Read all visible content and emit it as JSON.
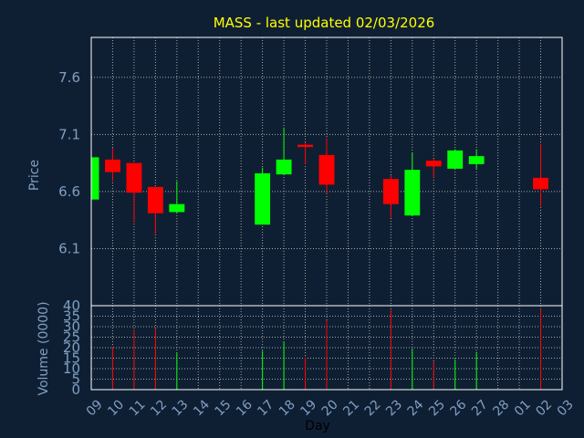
{
  "chart_data": {
    "type": "candlestick",
    "title": "MASS - last updated 02/03/2026",
    "xlabel": "Day",
    "price_ylabel": "Price",
    "volume_ylabel": "Volume (0000)",
    "x_ticks": [
      "09",
      "10",
      "11",
      "12",
      "13",
      "14",
      "15",
      "16",
      "17",
      "18",
      "19",
      "20",
      "21",
      "22",
      "23",
      "24",
      "25",
      "26",
      "27",
      "28",
      "01",
      "02",
      "03"
    ],
    "price_ticks": [
      "7.6",
      "7.1",
      "6.6",
      "6.1"
    ],
    "price_tick_values": [
      7.6,
      7.1,
      6.6,
      6.1
    ],
    "price_ylim": [
      5.6,
      7.95
    ],
    "volume_ticks": [
      "40",
      "35",
      "30",
      "25",
      "20",
      "15",
      "10",
      "5",
      "0"
    ],
    "volume_tick_values": [
      40,
      35,
      30,
      25,
      20,
      15,
      10,
      5,
      0
    ],
    "volume_ylim": [
      0,
      40
    ],
    "grid": true,
    "candles": [
      {
        "x": 0,
        "open": 6.53,
        "high": 6.9,
        "low": 6.53,
        "close": 6.9
      },
      {
        "x": 1,
        "open": 6.88,
        "high": 6.98,
        "low": 6.69,
        "close": 6.77
      },
      {
        "x": 2,
        "open": 6.85,
        "high": 6.85,
        "low": 6.33,
        "close": 6.59
      },
      {
        "x": 3,
        "open": 6.64,
        "high": 6.64,
        "low": 6.23,
        "close": 6.41
      },
      {
        "x": 4,
        "open": 6.42,
        "high": 6.69,
        "low": 6.41,
        "close": 6.49
      },
      {
        "x": 8,
        "open": 6.31,
        "high": 6.81,
        "low": 6.31,
        "close": 6.76
      },
      {
        "x": 9,
        "open": 6.75,
        "high": 7.16,
        "low": 6.75,
        "close": 6.88
      },
      {
        "x": 10,
        "open": 7.01,
        "high": 7.03,
        "low": 6.84,
        "close": 6.99
      },
      {
        "x": 11,
        "open": 6.92,
        "high": 7.07,
        "low": 6.58,
        "close": 6.66
      },
      {
        "x": 14,
        "open": 6.71,
        "high": 6.74,
        "low": 6.37,
        "close": 6.49
      },
      {
        "x": 15,
        "open": 6.39,
        "high": 6.94,
        "low": 6.39,
        "close": 6.79
      },
      {
        "x": 16,
        "open": 6.87,
        "high": 6.89,
        "low": 6.72,
        "close": 6.82
      },
      {
        "x": 17,
        "open": 6.8,
        "high": 6.97,
        "low": 6.8,
        "close": 6.96
      },
      {
        "x": 18,
        "open": 6.84,
        "high": 6.97,
        "low": 6.8,
        "close": 6.91
      },
      {
        "x": 21,
        "open": 6.72,
        "high": 7.02,
        "low": 6.47,
        "close": 6.62
      }
    ],
    "volumes": [
      {
        "x": 1,
        "value": 20.5
      },
      {
        "x": 2,
        "value": 28.5
      },
      {
        "x": 3,
        "value": 29.0
      },
      {
        "x": 4,
        "value": 17.5
      },
      {
        "x": 8,
        "value": 18.5
      },
      {
        "x": 9,
        "value": 23.0
      },
      {
        "x": 10,
        "value": 15.5
      },
      {
        "x": 11,
        "value": 33.0
      },
      {
        "x": 14,
        "value": 38.0
      },
      {
        "x": 15,
        "value": 19.5
      },
      {
        "x": 16,
        "value": 13.5
      },
      {
        "x": 17,
        "value": 14.5
      },
      {
        "x": 18,
        "value": 18.0
      },
      {
        "x": 21,
        "value": 38.5
      }
    ],
    "colors": {
      "background": "#0f1f33",
      "up": "#00ff00",
      "down": "#ff0000",
      "title": "#ffff00",
      "axis_text": "#7f9fc3",
      "frame": "#ffffff",
      "grid": "#a6a6a6"
    }
  }
}
